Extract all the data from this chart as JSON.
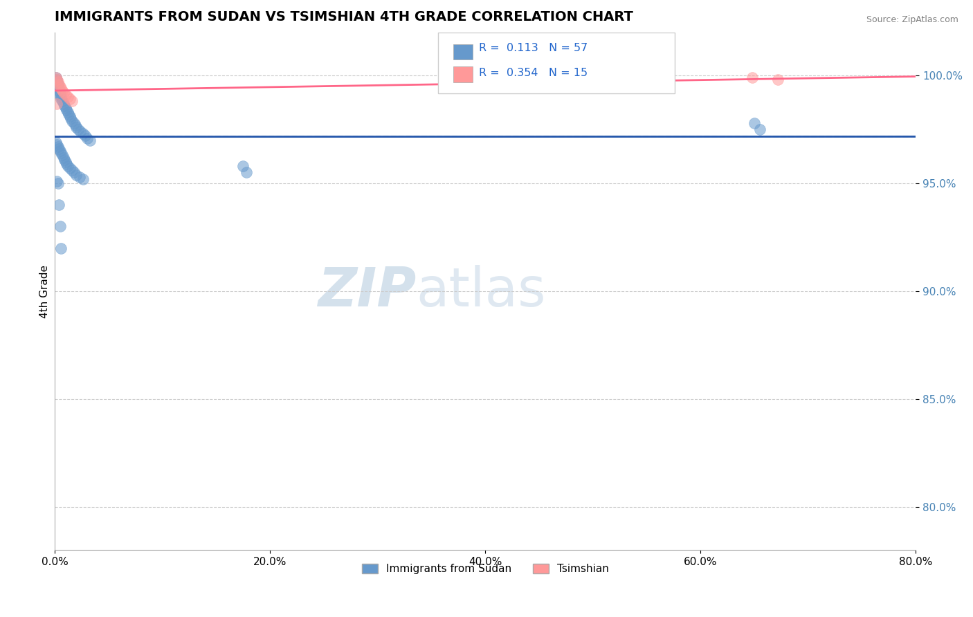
{
  "title": "IMMIGRANTS FROM SUDAN VS TSIMSHIAN 4TH GRADE CORRELATION CHART",
  "source": "Source: ZipAtlas.com",
  "ylabel": "4th Grade",
  "legend_label_1": "Immigrants from Sudan",
  "legend_label_2": "Tsimshian",
  "R1": 0.113,
  "N1": 57,
  "R2": 0.354,
  "N2": 15,
  "x_ticks": [
    "0.0%",
    "20.0%",
    "40.0%",
    "60.0%",
    "80.0%"
  ],
  "x_tick_vals": [
    0.0,
    0.2,
    0.4,
    0.6,
    0.8
  ],
  "y_ticks": [
    "80.0%",
    "85.0%",
    "90.0%",
    "95.0%",
    "100.0%"
  ],
  "y_tick_vals": [
    0.8,
    0.85,
    0.9,
    0.95,
    1.0
  ],
  "xlim": [
    0.0,
    0.8
  ],
  "ylim": [
    0.78,
    1.02
  ],
  "blue_color": "#6699CC",
  "pink_color": "#FF9999",
  "blue_line_color": "#2255AA",
  "pink_line_color": "#FF6688",
  "grid_color": "#CCCCCC",
  "background_color": "#FFFFFF",
  "blue_scatter_x": [
    0.001,
    0.002,
    0.002,
    0.003,
    0.003,
    0.004,
    0.004,
    0.005,
    0.005,
    0.006,
    0.006,
    0.007,
    0.008,
    0.009,
    0.01,
    0.011,
    0.012,
    0.013,
    0.014,
    0.015,
    0.016,
    0.018,
    0.019,
    0.02,
    0.022,
    0.024,
    0.026,
    0.028,
    0.03,
    0.033,
    0.001,
    0.002,
    0.003,
    0.004,
    0.005,
    0.006,
    0.007,
    0.008,
    0.009,
    0.01,
    0.011,
    0.012,
    0.014,
    0.016,
    0.018,
    0.02,
    0.023,
    0.026,
    0.002,
    0.003,
    0.004,
    0.005,
    0.006,
    0.175,
    0.178,
    0.65,
    0.655
  ],
  "blue_scatter_y": [
    0.999,
    0.998,
    0.997,
    0.996,
    0.995,
    0.994,
    0.993,
    0.992,
    0.991,
    0.99,
    0.989,
    0.988,
    0.987,
    0.986,
    0.985,
    0.984,
    0.983,
    0.982,
    0.981,
    0.98,
    0.979,
    0.978,
    0.977,
    0.976,
    0.975,
    0.974,
    0.973,
    0.972,
    0.971,
    0.97,
    0.969,
    0.968,
    0.967,
    0.966,
    0.965,
    0.964,
    0.963,
    0.962,
    0.961,
    0.96,
    0.959,
    0.958,
    0.957,
    0.956,
    0.955,
    0.954,
    0.953,
    0.952,
    0.951,
    0.95,
    0.94,
    0.93,
    0.92,
    0.958,
    0.955,
    0.978,
    0.975
  ],
  "pink_scatter_x": [
    0.001,
    0.002,
    0.003,
    0.004,
    0.005,
    0.006,
    0.007,
    0.008,
    0.01,
    0.012,
    0.014,
    0.016,
    0.002,
    0.648,
    0.672
  ],
  "pink_scatter_y": [
    0.999,
    0.998,
    0.997,
    0.996,
    0.995,
    0.994,
    0.993,
    0.992,
    0.991,
    0.99,
    0.989,
    0.988,
    0.987,
    0.999,
    0.998
  ]
}
